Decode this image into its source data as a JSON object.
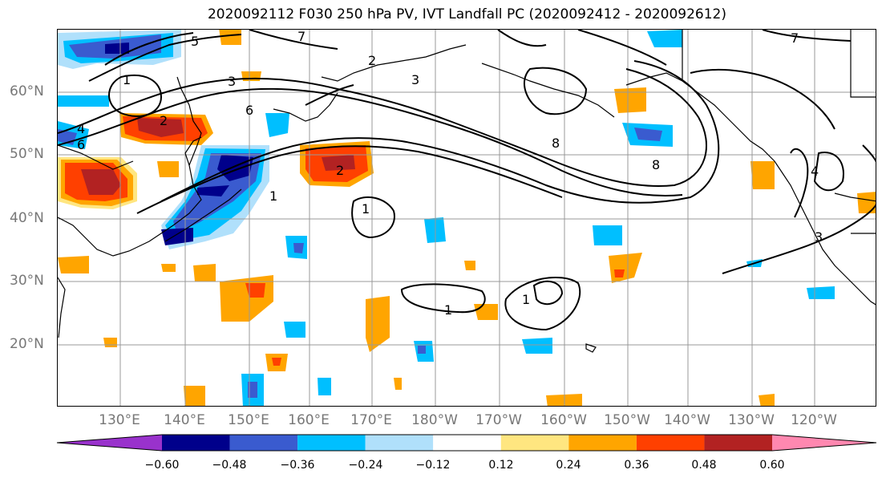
{
  "title": "2020092112 F030 250 hPa PV, IVT Landfall PC (2020092412 - 2020092612)",
  "latitudes": [
    "60°N",
    "50°N",
    "40°N",
    "30°N",
    "20°N"
  ],
  "longitudes": [
    "130°E",
    "140°E",
    "150°E",
    "160°E",
    "170°E",
    "180°W",
    "170°W",
    "160°W",
    "150°W",
    "140°W",
    "130°W",
    "120°W"
  ],
  "colorbar": {
    "ticks": [
      "−0.60",
      "−0.48",
      "−0.36",
      "−0.24",
      "−0.12",
      "0.12",
      "0.24",
      "0.36",
      "0.48",
      "0.60"
    ],
    "colors": [
      "#9932cc",
      "#00008b",
      "#3a5bcf",
      "#00bfff",
      "#b0e0fb",
      "#ffffff",
      "#ffe680",
      "#ffa500",
      "#ff4000",
      "#b22222",
      "#ff88b0"
    ]
  },
  "contour_labels": [
    "1",
    "2",
    "3",
    "4",
    "5",
    "6",
    "7",
    "8",
    "2",
    "3",
    "1",
    "1",
    "2",
    "1",
    "3",
    "8",
    "4",
    "7",
    "1",
    "6"
  ],
  "colors": {
    "grid": "#999999",
    "coast": "#000000",
    "contour": "#000000",
    "axis_text": "#777777"
  }
}
